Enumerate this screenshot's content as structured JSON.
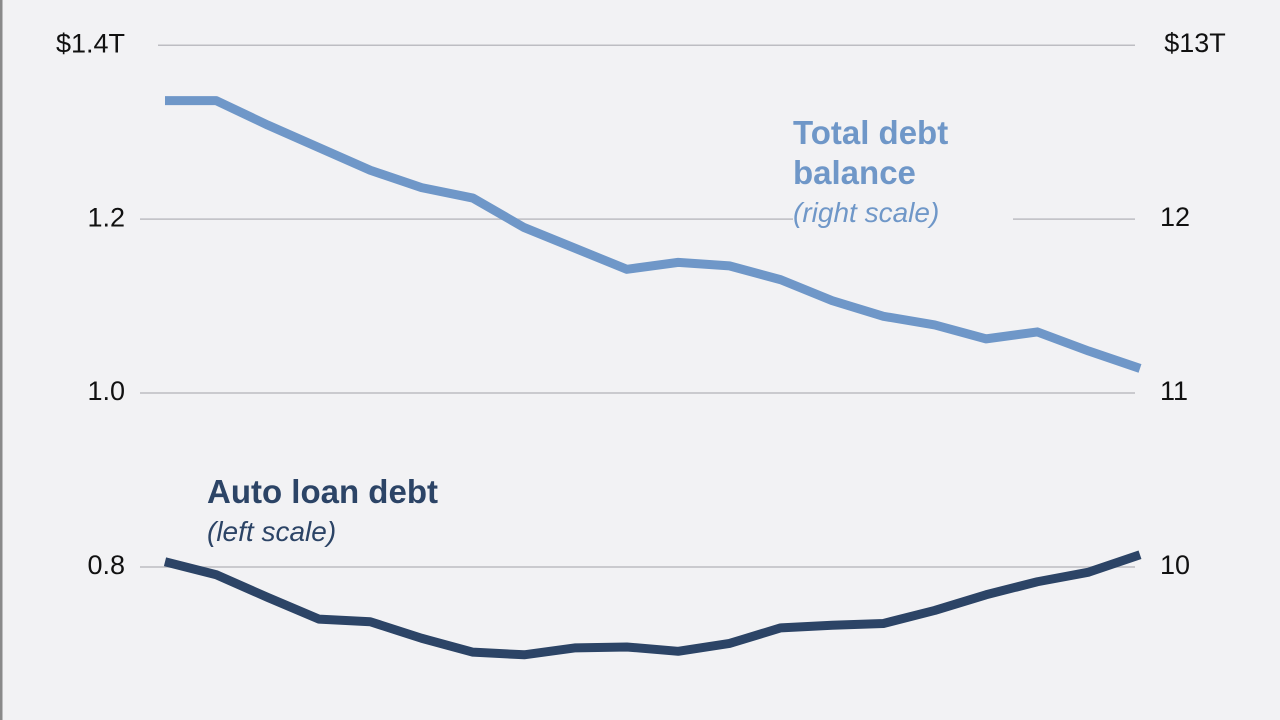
{
  "chart_data": {
    "type": "line",
    "categories": [
      null,
      null,
      null,
      null,
      null,
      null,
      null,
      null,
      null,
      null,
      null,
      null,
      null,
      null,
      null,
      null,
      null,
      null,
      null,
      null
    ],
    "series": [
      {
        "name": "Total debt balance",
        "note": "(right scale)",
        "color": "#6f97c8",
        "axis": "y2",
        "values": [
          12.68,
          12.68,
          12.54,
          12.41,
          12.28,
          12.18,
          12.12,
          11.95,
          11.83,
          11.71,
          11.75,
          11.73,
          11.65,
          11.53,
          11.44,
          11.39,
          11.31,
          11.35,
          11.24,
          11.14
        ]
      },
      {
        "name": "Auto loan debt",
        "note": "(left scale)",
        "color": "#2c4466",
        "values": [
          0.806,
          0.791,
          0.765,
          0.74,
          0.737,
          0.718,
          0.702,
          0.699,
          0.707,
          0.708,
          0.703,
          0.712,
          0.73,
          0.733,
          0.735,
          0.75,
          0.768,
          0.783,
          0.794,
          0.814
        ]
      }
    ],
    "ylim": [
      0.624,
      1.452
    ],
    "yticks": [
      {
        "value": 1.4,
        "label": "$1.4T"
      },
      1.2,
      {
        "value": 1,
        "label": "1.0"
      },
      0.8
    ],
    "y2lim": [
      9.118,
      13.259
    ],
    "y2ticks": [
      {
        "value": 13,
        "label": "$13T"
      },
      12,
      11,
      10
    ],
    "grid": true
  }
}
